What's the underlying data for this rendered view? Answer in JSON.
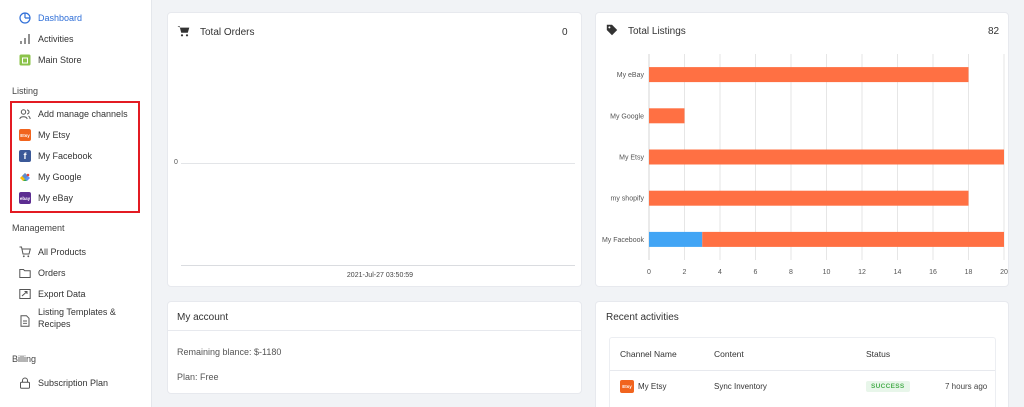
{
  "sidebar": {
    "items": [
      {
        "label": "Dashboard",
        "icon": "dashboard-icon"
      },
      {
        "label": "Activities",
        "icon": "bar-chart-icon"
      },
      {
        "label": "Main Store",
        "icon": "store-icon"
      }
    ],
    "listing_label": "Listing",
    "listing_items": [
      {
        "label": "Add manage channels",
        "icon": "users-icon"
      },
      {
        "label": "My Etsy",
        "icon": "etsy-icon",
        "brand_text": "Etsy"
      },
      {
        "label": "My Facebook",
        "icon": "facebook-icon",
        "brand_text": "f"
      },
      {
        "label": "My Google",
        "icon": "google-icon"
      },
      {
        "label": "My eBay",
        "icon": "ebay-icon",
        "brand_text": "ebay"
      }
    ],
    "management_label": "Management",
    "management_items": [
      {
        "label": "All Products",
        "icon": "cart-icon"
      },
      {
        "label": "Orders",
        "icon": "folder-icon"
      },
      {
        "label": "Export Data",
        "icon": "export-icon"
      },
      {
        "label": "Listing Templates &",
        "label2": "Recipes",
        "icon": "document-icon"
      }
    ],
    "billing_label": "Billing",
    "billing_items": [
      {
        "label": "Subscription Plan",
        "icon": "lock-icon"
      }
    ]
  },
  "orders": {
    "title": "Total Orders",
    "count": "0",
    "y_tick": "0",
    "x_tick": "2021-Jul-27 03:50:59"
  },
  "listings": {
    "title": "Total Listings",
    "count": "82"
  },
  "account": {
    "title": "My account",
    "balance": "Remaining blance: $-1180",
    "plan": "Plan: Free"
  },
  "activities": {
    "title": "Recent activities",
    "headers": {
      "channel": "Channel Name",
      "content": "Content",
      "status": "Status"
    },
    "rows": [
      {
        "channel": "My Etsy",
        "channel_icon_text": "Etsy",
        "content": "Sync Inventory",
        "status": "SUCCESS",
        "time": "7 hours ago"
      }
    ]
  },
  "colors": {
    "accent": "#2f6fd8",
    "bar_orange": "#ff7043",
    "bar_blue": "#42a5f5",
    "success": "#4caf50",
    "highlight": "#e31b23"
  },
  "chart_data": {
    "type": "bar",
    "orientation": "horizontal",
    "stacked": true,
    "categories": [
      "My eBay",
      "My Google",
      "My Etsy",
      "my shopify",
      "My Facebook"
    ],
    "series": [
      {
        "values": [
          0,
          0,
          0,
          0,
          3
        ],
        "color": "#42a5f5"
      },
      {
        "values": [
          18,
          2,
          20,
          18,
          17
        ],
        "color": "#ff7043"
      }
    ],
    "x_ticks": [
      "0",
      "2",
      "4",
      "6",
      "8",
      "10",
      "12",
      "14",
      "16",
      "18",
      "20"
    ],
    "xlim": [
      0,
      20
    ],
    "grid": true
  }
}
